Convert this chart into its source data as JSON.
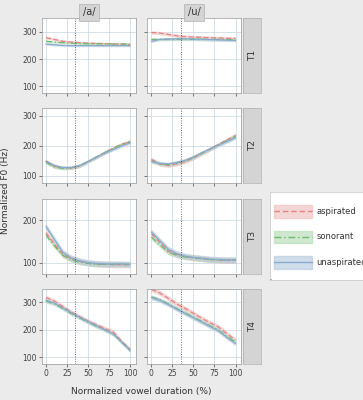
{
  "vowels": [
    "/a/",
    "/u/"
  ],
  "tones": [
    "T1",
    "T2",
    "T3",
    "T4"
  ],
  "x": [
    0,
    10,
    20,
    30,
    40,
    50,
    60,
    70,
    80,
    90,
    100
  ],
  "colors": {
    "aspirated": "#e88080",
    "sonorant": "#70b870",
    "unaspirated": "#88aacc"
  },
  "ribbon_colors": {
    "aspirated": "#f0c0c0",
    "sonorant": "#b8ddb8",
    "unaspirated": "#b8cce0"
  },
  "curves": {
    "T1": {
      "/a/": {
        "aspirated": [
          278,
          272,
          265,
          262,
          260,
          258,
          257,
          256,
          255,
          254,
          253
        ],
        "sonorant": [
          265,
          262,
          260,
          258,
          257,
          256,
          256,
          256,
          255,
          255,
          255
        ],
        "unaspirated": [
          255,
          252,
          250,
          249,
          249,
          249,
          249,
          249,
          249,
          249,
          249
        ]
      },
      "/u/": {
        "aspirated": [
          297,
          295,
          290,
          285,
          282,
          280,
          279,
          278,
          277,
          276,
          275
        ],
        "sonorant": [
          272,
          272,
          272,
          272,
          272,
          272,
          272,
          272,
          272,
          271,
          270
        ],
        "unaspirated": [
          265,
          272,
          273,
          274,
          274,
          273,
          272,
          271,
          270,
          269,
          268
        ]
      }
    },
    "T2": {
      "/a/": {
        "aspirated": [
          150,
          132,
          127,
          127,
          133,
          148,
          163,
          178,
          192,
          205,
          215
        ],
        "sonorant": [
          145,
          130,
          125,
          127,
          133,
          148,
          163,
          178,
          192,
          205,
          213
        ],
        "unaspirated": [
          148,
          135,
          128,
          128,
          135,
          148,
          162,
          176,
          188,
          200,
          210
        ]
      },
      "/u/": {
        "aspirated": [
          155,
          140,
          135,
          140,
          148,
          160,
          175,
          190,
          205,
          220,
          235
        ],
        "sonorant": [
          150,
          140,
          138,
          143,
          150,
          162,
          176,
          190,
          204,
          218,
          232
        ],
        "unaspirated": [
          148,
          142,
          140,
          145,
          152,
          163,
          177,
          190,
          203,
          215,
          227
        ]
      }
    },
    "T3": {
      "/a/": {
        "aspirated": [
          170,
          145,
          120,
          110,
          104,
          100,
          98,
          97,
          96,
          96,
          96
        ],
        "sonorant": [
          165,
          140,
          118,
          108,
          102,
          99,
          97,
          97,
          97,
          97,
          97
        ],
        "unaspirated": [
          185,
          155,
          125,
          112,
          105,
          101,
          99,
          98,
          98,
          98,
          97
        ]
      },
      "/u/": {
        "aspirated": [
          168,
          148,
          128,
          120,
          115,
          112,
          110,
          108,
          107,
          106,
          106
        ],
        "sonorant": [
          160,
          142,
          125,
          118,
          114,
          112,
          110,
          108,
          107,
          107,
          108
        ],
        "unaspirated": [
          172,
          152,
          132,
          122,
          116,
          113,
          111,
          109,
          108,
          107,
          107
        ]
      }
    },
    "T4": {
      "/a/": {
        "aspirated": [
          318,
          305,
          285,
          265,
          248,
          232,
          218,
          205,
          192,
          158,
          128
        ],
        "sonorant": [
          305,
          295,
          278,
          260,
          244,
          228,
          213,
          200,
          185,
          155,
          126
        ],
        "unaspirated": [
          308,
          298,
          280,
          263,
          246,
          230,
          215,
          200,
          185,
          155,
          125
        ]
      },
      "/u/": {
        "aspirated": [
          348,
          335,
          315,
          295,
          278,
          260,
          242,
          225,
          210,
          185,
          162
        ],
        "sonorant": [
          320,
          310,
          295,
          278,
          262,
          246,
          230,
          214,
          198,
          175,
          155
        ],
        "unaspirated": [
          318,
          308,
          293,
          276,
          260,
          244,
          228,
          212,
          196,
          172,
          150
        ]
      }
    }
  },
  "ribbon_half": {
    "T1": {
      "/a/": {
        "aspirated": 5,
        "sonorant": 4,
        "unaspirated": 4
      },
      "/u/": {
        "aspirated": 6,
        "sonorant": 5,
        "unaspirated": 5
      }
    },
    "T2": {
      "/a/": {
        "aspirated": 6,
        "sonorant": 5,
        "unaspirated": 5
      },
      "/u/": {
        "aspirated": 7,
        "sonorant": 6,
        "unaspirated": 6
      }
    },
    "T3": {
      "/a/": {
        "aspirated": 7,
        "sonorant": 6,
        "unaspirated": 7
      },
      "/u/": {
        "aspirated": 7,
        "sonorant": 6,
        "unaspirated": 7
      }
    },
    "T4": {
      "/a/": {
        "aspirated": 8,
        "sonorant": 7,
        "unaspirated": 7
      },
      "/u/": {
        "aspirated": 9,
        "sonorant": 8,
        "unaspirated": 8
      }
    }
  },
  "ylims": {
    "T1": [
      75,
      350
    ],
    "T2": [
      75,
      325
    ],
    "T3": [
      75,
      250
    ],
    "T4": [
      75,
      350
    ]
  },
  "yticks": {
    "T1": [
      100,
      200,
      300
    ],
    "T2": [
      100,
      200,
      300
    ],
    "T3": [
      100,
      200
    ],
    "T4": [
      100,
      200,
      300
    ]
  },
  "vline_x": 35,
  "xlabel": "Normalized vowel duration (%)",
  "ylabel": "Normalized F0 (Hz)",
  "bg_color": "#ebebeb",
  "panel_bg": "#ffffff",
  "grid_color": "#c8d4de",
  "strip_color": "#d4d4d4",
  "strip_border": "#b0b0b0",
  "conditions": [
    "aspirated",
    "sonorant",
    "unaspirated"
  ]
}
